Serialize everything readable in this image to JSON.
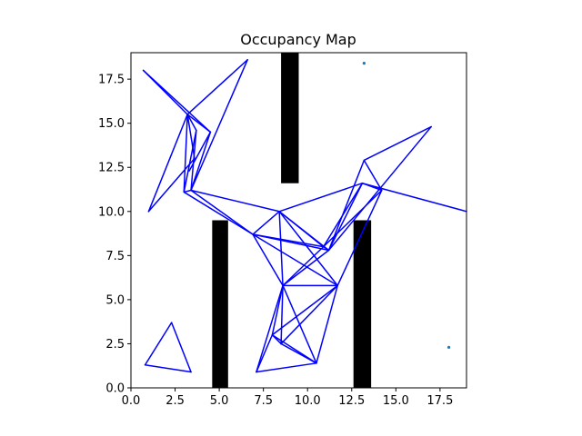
{
  "chart_data": {
    "type": "scatter",
    "title": "Occupancy Map",
    "xlabel": "",
    "ylabel": "",
    "xlim": [
      0,
      19
    ],
    "ylim": [
      0,
      19
    ],
    "grid": false,
    "xticks": [
      0.0,
      2.5,
      5.0,
      7.5,
      10.0,
      12.5,
      15.0,
      17.5
    ],
    "xtick_labels": [
      "0.0",
      "2.5",
      "5.0",
      "7.5",
      "10.0",
      "12.5",
      "15.0",
      "17.5"
    ],
    "yticks": [
      0.0,
      2.5,
      5.0,
      7.5,
      10.0,
      12.5,
      15.0,
      17.5
    ],
    "ytick_labels": [
      "0.0",
      "2.5",
      "5.0",
      "7.5",
      "10.0",
      "12.5",
      "15.0",
      "17.5"
    ],
    "edge_color": "#0000ff",
    "point_color": "#1f77b4",
    "obstacle_color": "#000000",
    "obstacles": [
      {
        "x0": 4.6,
        "x1": 5.5,
        "y0": 0.0,
        "y1": 9.5
      },
      {
        "x0": 8.5,
        "x1": 9.5,
        "y0": 11.6,
        "y1": 19.0
      },
      {
        "x0": 12.6,
        "x1": 13.6,
        "y0": 0.0,
        "y1": 9.5
      }
    ],
    "nodes": [
      [
        0.7,
        18.0
      ],
      [
        6.6,
        18.6
      ],
      [
        3.2,
        15.5
      ],
      [
        4.5,
        14.5
      ],
      [
        3.7,
        14.6
      ],
      [
        1.0,
        10.0
      ],
      [
        3.0,
        11.1
      ],
      [
        3.4,
        11.2
      ],
      [
        3.6,
        13.0
      ],
      [
        3.3,
        12.3
      ],
      [
        8.4,
        10.0
      ],
      [
        6.9,
        8.7
      ],
      [
        11.2,
        7.8
      ],
      [
        10.9,
        8.0
      ],
      [
        8.6,
        5.8
      ],
      [
        11.7,
        5.8
      ],
      [
        8.0,
        3.0
      ],
      [
        8.5,
        2.5
      ],
      [
        10.5,
        1.4
      ],
      [
        7.1,
        0.9
      ],
      [
        13.1,
        11.6
      ],
      [
        13.2,
        12.9
      ],
      [
        17.0,
        14.8
      ],
      [
        14.2,
        11.2
      ],
      [
        19.0,
        10.0
      ],
      [
        0.8,
        1.3
      ],
      [
        2.3,
        3.7
      ],
      [
        3.4,
        0.9
      ]
    ],
    "edges": [
      [
        0,
        2
      ],
      [
        0,
        3
      ],
      [
        2,
        1
      ],
      [
        1,
        7
      ],
      [
        2,
        4
      ],
      [
        2,
        3
      ],
      [
        2,
        6
      ],
      [
        2,
        8
      ],
      [
        4,
        7
      ],
      [
        4,
        6
      ],
      [
        3,
        7
      ],
      [
        3,
        9
      ],
      [
        5,
        2
      ],
      [
        5,
        8
      ],
      [
        6,
        7
      ],
      [
        7,
        10
      ],
      [
        7,
        11
      ],
      [
        6,
        11
      ],
      [
        10,
        11
      ],
      [
        10,
        12
      ],
      [
        10,
        13
      ],
      [
        10,
        14
      ],
      [
        10,
        15
      ],
      [
        11,
        12
      ],
      [
        11,
        13
      ],
      [
        11,
        15
      ],
      [
        11,
        14
      ],
      [
        14,
        12
      ],
      [
        14,
        13
      ],
      [
        14,
        15
      ],
      [
        14,
        17
      ],
      [
        14,
        16
      ],
      [
        14,
        18
      ],
      [
        14,
        19
      ],
      [
        12,
        13
      ],
      [
        12,
        20
      ],
      [
        12,
        21
      ],
      [
        13,
        20
      ],
      [
        10,
        20
      ],
      [
        20,
        23
      ],
      [
        20,
        24
      ],
      [
        21,
        22
      ],
      [
        21,
        23
      ],
      [
        22,
        12
      ],
      [
        23,
        15
      ],
      [
        23,
        13
      ],
      [
        15,
        16
      ],
      [
        15,
        18
      ],
      [
        15,
        17
      ],
      [
        16,
        18
      ],
      [
        16,
        17
      ],
      [
        17,
        18
      ],
      [
        18,
        19
      ],
      [
        16,
        19
      ],
      [
        25,
        26
      ],
      [
        26,
        27
      ],
      [
        25,
        27
      ]
    ],
    "markers": [
      [
        13.2,
        18.4
      ],
      [
        18.0,
        2.3
      ]
    ]
  }
}
